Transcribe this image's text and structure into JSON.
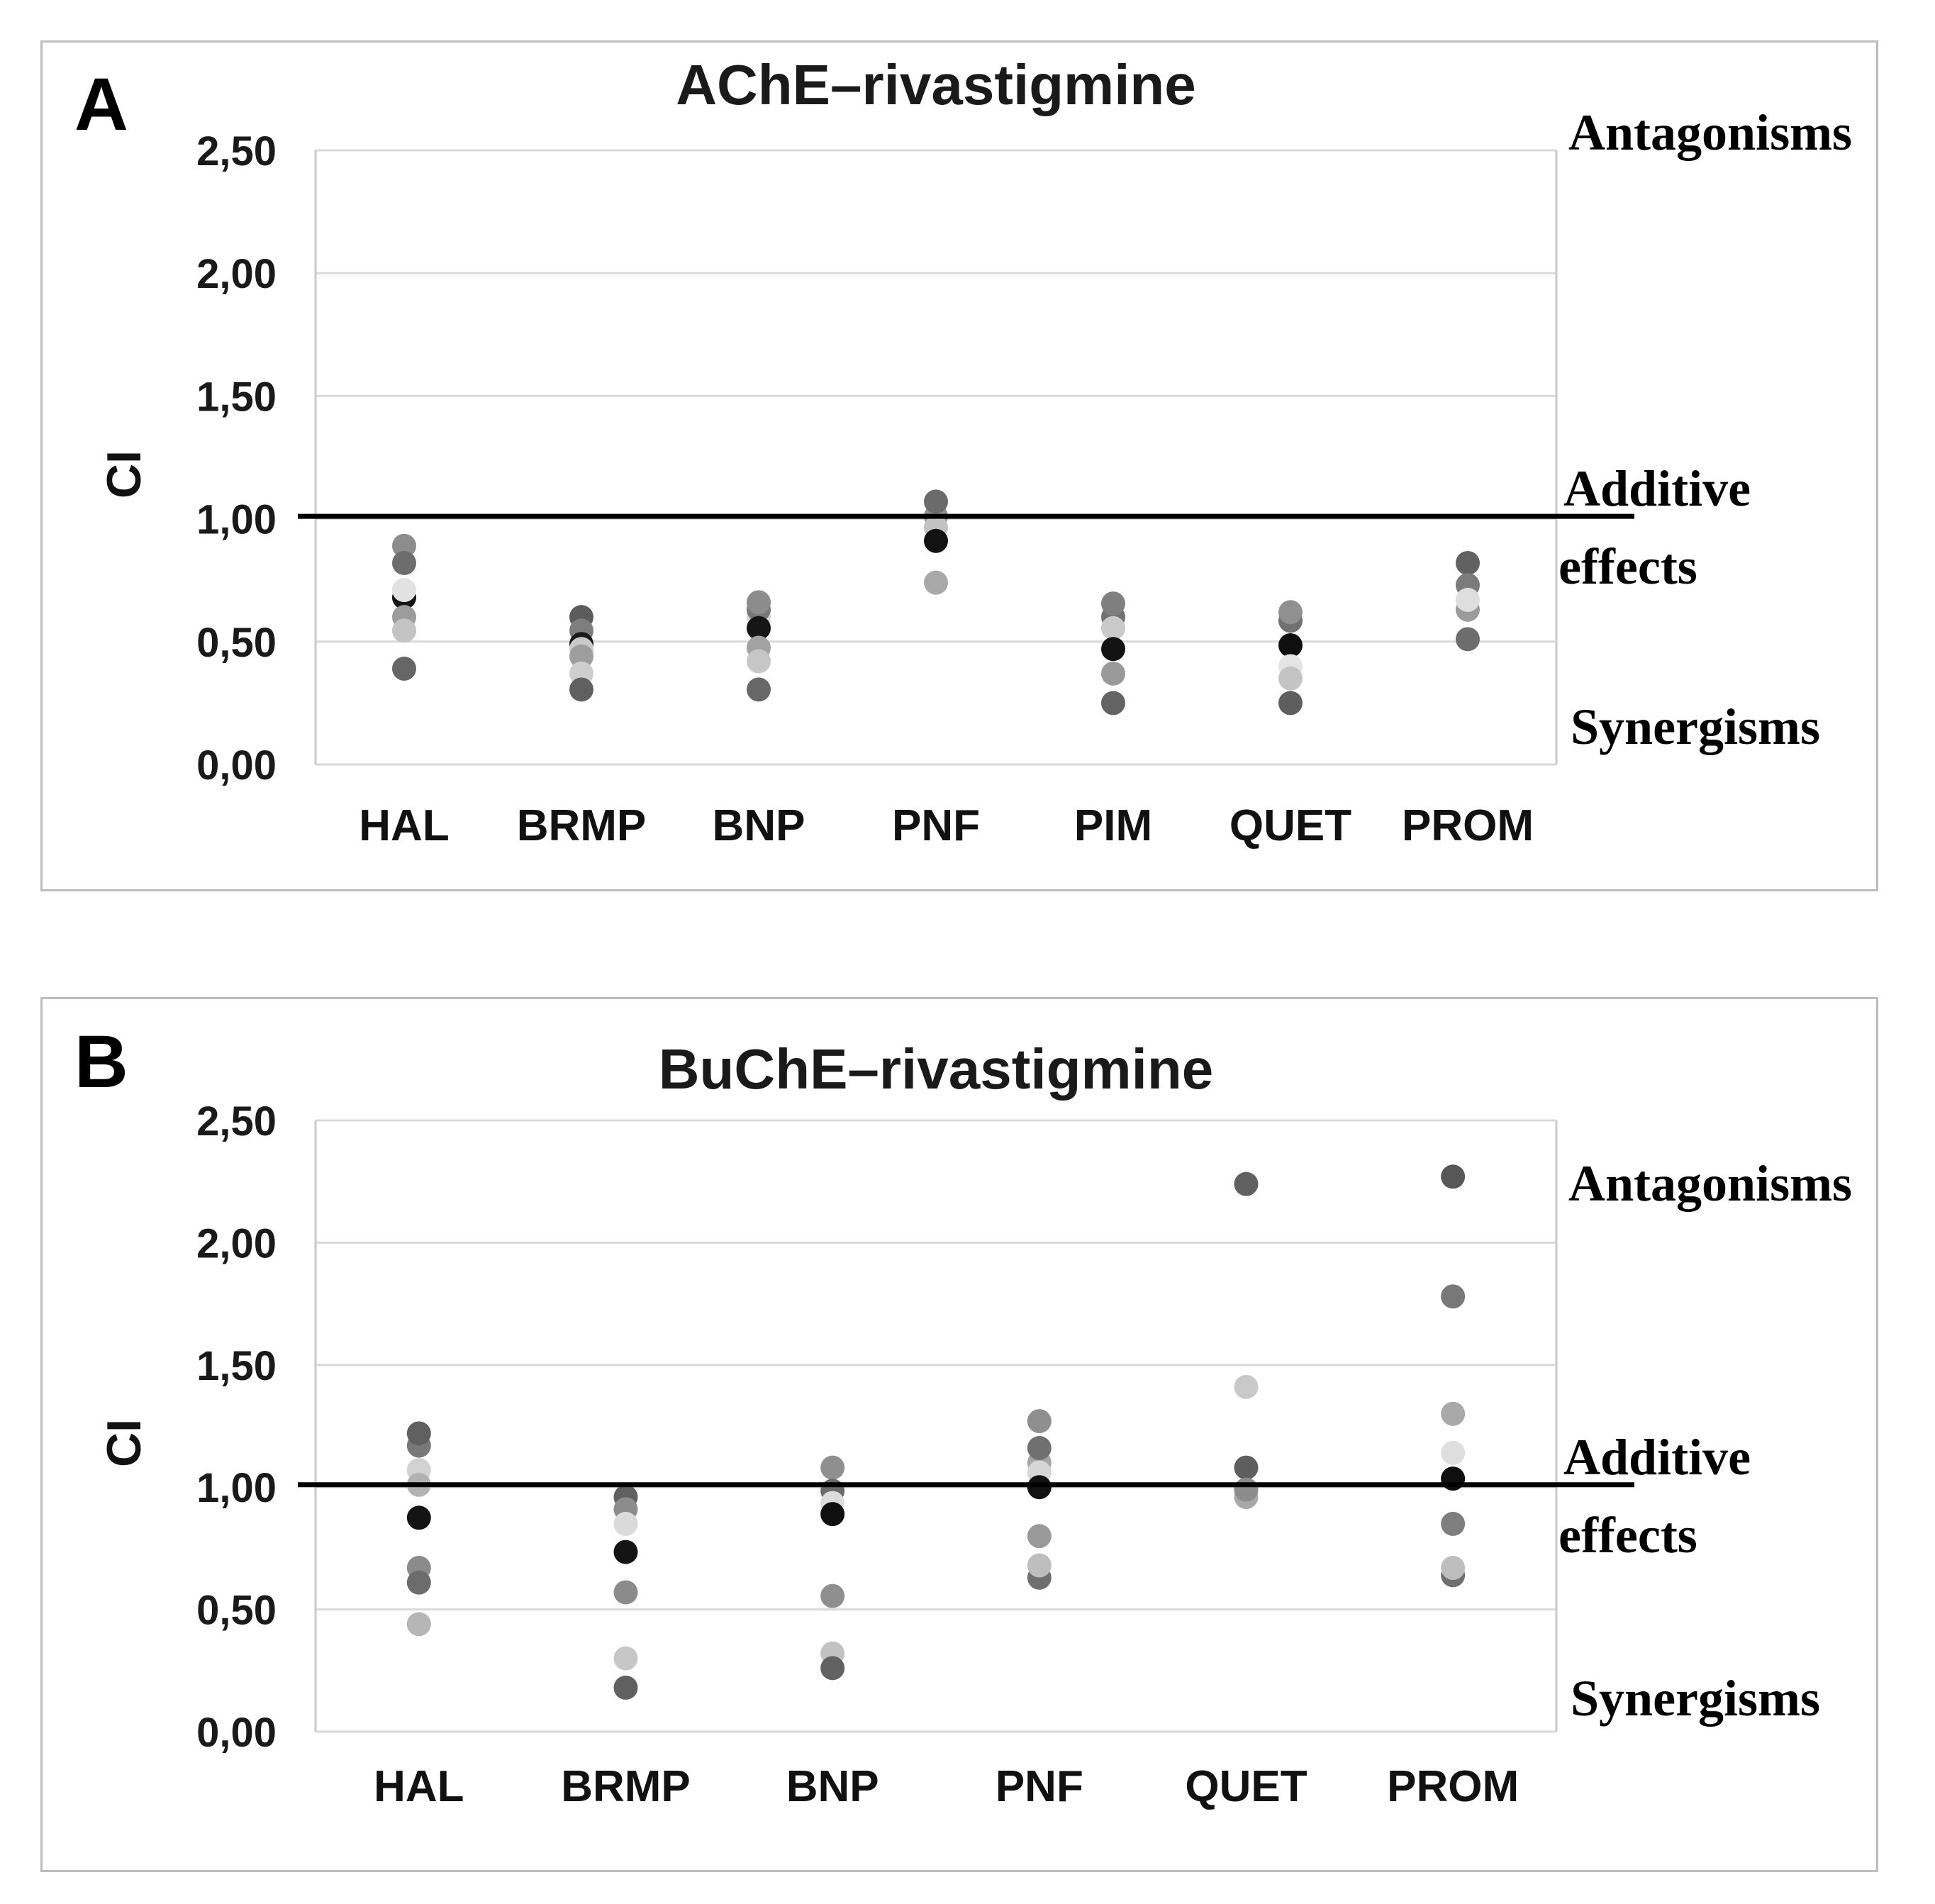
{
  "figure": {
    "description": "Two-panel dot plot of combination index (CI) values",
    "accent_black_line_color": "#000000",
    "gridline_color": "#d9d9d9",
    "panel_border_color": "#bdbdbd"
  },
  "chart_data": [
    {
      "type": "scatter",
      "panel": "A",
      "title": "AChE–rivastigmine",
      "ylabel": "CI",
      "ylim": [
        0,
        2.5
      ],
      "grid": "horizontal",
      "y_ticks": [
        "0,00",
        "0,50",
        "1,00",
        "1,50",
        "2,00",
        "2,50"
      ],
      "reference_line": {
        "ci": 1.01
      },
      "region_labels": {
        "above": "Antagonisms",
        "additive_line1": "Additive",
        "additive_line2": "effects",
        "below": "Synergisms"
      },
      "categories": [
        "HAL",
        "BRMP",
        "BNP",
        "PNF",
        "PIM",
        "QUET",
        "PROM"
      ],
      "points": {
        "HAL": [
          {
            "v": 0.89,
            "c": "#8d8d8d"
          },
          {
            "v": 0.82,
            "c": "#6d6d6d"
          },
          {
            "v": 0.68,
            "c": "#141414"
          },
          {
            "v": 0.71,
            "c": "#e2e2e2"
          },
          {
            "v": 0.6,
            "c": "#9c9c9c"
          },
          {
            "v": 0.545,
            "c": "#c3c3c3"
          },
          {
            "v": 0.39,
            "c": "#666666"
          }
        ],
        "BRMP": [
          {
            "v": 0.6,
            "c": "#5c5c5c"
          },
          {
            "v": 0.545,
            "c": "#7e7e7e"
          },
          {
            "v": 0.49,
            "c": "#1a1a1a"
          },
          {
            "v": 0.47,
            "c": "#c9c9c9"
          },
          {
            "v": 0.44,
            "c": "#9e9e9e"
          },
          {
            "v": 0.37,
            "c": "#cecece"
          },
          {
            "v": 0.305,
            "c": "#606060"
          }
        ],
        "BNP": [
          {
            "v": 0.6,
            "c": "#d8d8d8"
          },
          {
            "v": 0.63,
            "c": "#787878"
          },
          {
            "v": 0.66,
            "c": "#8c8c8c"
          },
          {
            "v": 0.555,
            "c": "#161616"
          },
          {
            "v": 0.475,
            "c": "#a2a2a2"
          },
          {
            "v": 0.42,
            "c": "#c6c6c6"
          },
          {
            "v": 0.305,
            "c": "#686868"
          }
        ],
        "PNF": [
          {
            "v": 1.01,
            "c": "#919191"
          },
          {
            "v": 1.07,
            "c": "#6b6b6b"
          },
          {
            "v": 0.965,
            "c": "#c2c2c2"
          },
          {
            "v": 0.91,
            "c": "#121212"
          },
          {
            "v": 0.74,
            "c": "#a8a8a8"
          }
        ],
        "PIM": [
          {
            "v": 0.6,
            "c": "#717171"
          },
          {
            "v": 0.655,
            "c": "#7f7f7f"
          },
          {
            "v": 0.555,
            "c": "#c9c9c9"
          },
          {
            "v": 0.47,
            "c": "#131313"
          },
          {
            "v": 0.37,
            "c": "#9a9a9a"
          },
          {
            "v": 0.25,
            "c": "#636363"
          }
        ],
        "QUET": [
          {
            "v": 0.585,
            "c": "#717171"
          },
          {
            "v": 0.62,
            "c": "#909090"
          },
          {
            "v": 0.485,
            "c": "#0f0f0f"
          },
          {
            "v": 0.4,
            "c": "#e4e4e4"
          },
          {
            "v": 0.35,
            "c": "#c4c4c4"
          },
          {
            "v": 0.25,
            "c": "#5e5e5e"
          }
        ],
        "PROM": [
          {
            "v": 0.82,
            "c": "#616161"
          },
          {
            "v": 0.73,
            "c": "#7b7b7b"
          },
          {
            "v": 0.63,
            "c": "#9c9c9c"
          },
          {
            "v": 0.67,
            "c": "#dedede"
          },
          {
            "v": 0.51,
            "c": "#6d6d6d"
          }
        ]
      }
    },
    {
      "type": "scatter",
      "panel": "B",
      "title": "BuChE–rivastigmine",
      "ylabel": "CI",
      "ylim": [
        0,
        2.5
      ],
      "grid": "horizontal",
      "y_ticks": [
        "0,00",
        "0,50",
        "1,00",
        "1,50",
        "2,00",
        "2,50"
      ],
      "reference_line": {
        "ci": 1.01
      },
      "region_labels": {
        "above": "Antagonisms",
        "additive_line1": "Additive",
        "additive_line2": "effects",
        "below": "Synergisms"
      },
      "categories": [
        "HAL",
        "BRMP",
        "BNP",
        "PNF",
        "QUET",
        "PROM"
      ],
      "points": {
        "HAL": [
          {
            "v": 1.17,
            "c": "#787878"
          },
          {
            "v": 1.22,
            "c": "#606060"
          },
          {
            "v": 1.07,
            "c": "#d2d2d2"
          },
          {
            "v": 1.01,
            "c": "#b2b2b2"
          },
          {
            "v": 0.875,
            "c": "#141414"
          },
          {
            "v": 0.67,
            "c": "#8b8b8b"
          },
          {
            "v": 0.61,
            "c": "#6c6c6c"
          },
          {
            "v": 0.44,
            "c": "#b6b6b6"
          }
        ],
        "BRMP": [
          {
            "v": 0.96,
            "c": "#606060"
          },
          {
            "v": 0.91,
            "c": "#8c8c8c"
          },
          {
            "v": 0.85,
            "c": "#dadada"
          },
          {
            "v": 0.735,
            "c": "#141414"
          },
          {
            "v": 0.57,
            "c": "#8b8b8b"
          },
          {
            "v": 0.3,
            "c": "#c7c7c7"
          },
          {
            "v": 0.18,
            "c": "#606060"
          }
        ],
        "BNP": [
          {
            "v": 1.08,
            "c": "#8f8f8f"
          },
          {
            "v": 0.985,
            "c": "#6b6b6b"
          },
          {
            "v": 0.935,
            "c": "#dcdcdc"
          },
          {
            "v": 0.89,
            "c": "#101010"
          },
          {
            "v": 0.555,
            "c": "#8f8f8f"
          },
          {
            "v": 0.32,
            "c": "#c2c2c2"
          },
          {
            "v": 0.26,
            "c": "#626262"
          }
        ],
        "PNF": [
          {
            "v": 1.1,
            "c": "#a6a6a6"
          },
          {
            "v": 1.16,
            "c": "#707070"
          },
          {
            "v": 1.27,
            "c": "#8f8f8f"
          },
          {
            "v": 1.06,
            "c": "#d6d6d6"
          },
          {
            "v": 1.0,
            "c": "#121212"
          },
          {
            "v": 0.8,
            "c": "#9a9a9a"
          },
          {
            "v": 0.63,
            "c": "#6f6f6f"
          },
          {
            "v": 0.68,
            "c": "#bebebe"
          }
        ],
        "QUET": [
          {
            "v": 2.24,
            "c": "#606060"
          },
          {
            "v": 1.41,
            "c": "#c9c9c9"
          },
          {
            "v": 1.08,
            "c": "#5e5e5e"
          },
          {
            "v": 0.96,
            "c": "#a8a8a8"
          },
          {
            "v": 0.99,
            "c": "#8c8c8c"
          }
        ],
        "PROM": [
          {
            "v": 2.27,
            "c": "#575757"
          },
          {
            "v": 1.78,
            "c": "#787878"
          },
          {
            "v": 1.3,
            "c": "#a9a9a9"
          },
          {
            "v": 1.14,
            "c": "#dedede"
          },
          {
            "v": 1.035,
            "c": "#0f0f0f"
          },
          {
            "v": 0.85,
            "c": "#7e7e7e"
          },
          {
            "v": 0.64,
            "c": "#6f6f6f"
          },
          {
            "v": 0.67,
            "c": "#bdbdbd"
          }
        ]
      }
    }
  ]
}
